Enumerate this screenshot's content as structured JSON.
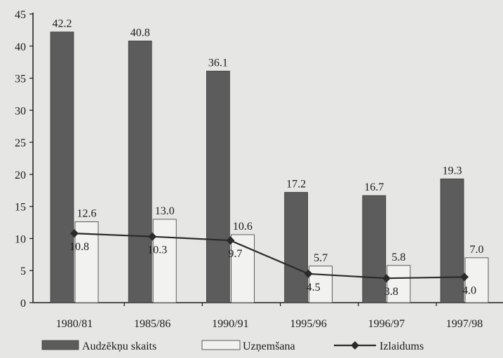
{
  "chart_data": {
    "type": "bar",
    "categories": [
      "1980/81",
      "1985/86",
      "1990/91",
      "1995/96",
      "1996/97",
      "1997/98"
    ],
    "series": [
      {
        "name": "Audzēkņu skaits",
        "kind": "bar",
        "values": [
          42.2,
          40.8,
          36.1,
          17.2,
          16.7,
          19.3
        ]
      },
      {
        "name": "Uzņemšana",
        "kind": "bar",
        "values": [
          12.6,
          13.0,
          10.6,
          5.7,
          5.8,
          7.0
        ]
      },
      {
        "name": "Izlaidums",
        "kind": "line",
        "values": [
          10.8,
          10.3,
          9.7,
          4.5,
          3.8,
          4.0
        ]
      }
    ],
    "y_ticks": [
      0,
      5,
      10,
      15,
      20,
      25,
      30,
      35,
      40,
      45
    ],
    "ylim": [
      0,
      45
    ],
    "grid": false,
    "legend_position": "bottom",
    "colors": {
      "bar_dark": "#5c5c5c",
      "bar_light": "#f2f2f0",
      "line": "#2a2a2a"
    }
  }
}
